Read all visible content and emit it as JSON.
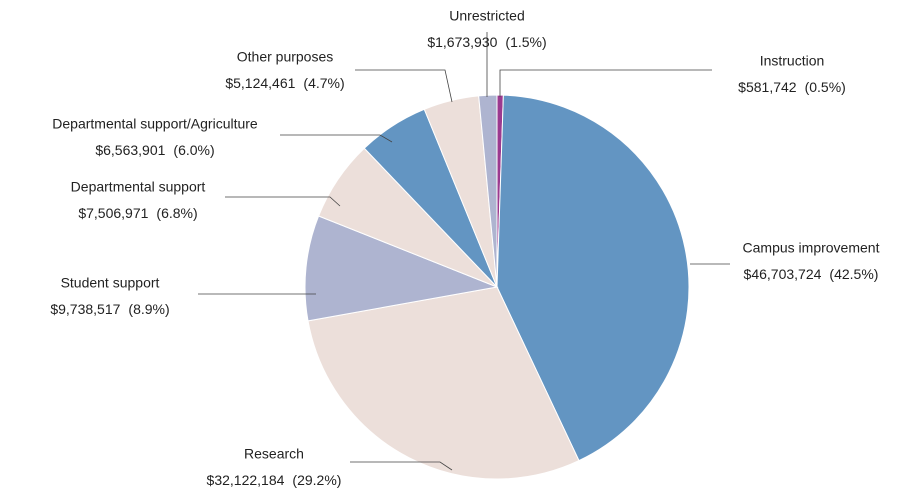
{
  "chart_data": {
    "type": "pie",
    "categories": [
      "Instruction",
      "Campus improvement",
      "Research",
      "Student support",
      "Departmental support",
      "Departmental support/Agriculture",
      "Other purposes",
      "Unrestricted"
    ],
    "values": [
      581742,
      46703724,
      32122184,
      9738517,
      7506971,
      6563901,
      5124461,
      1673930
    ],
    "value_labels": [
      "$581,742",
      "$46,703,724",
      "$32,122,184",
      "$9,738,517",
      "$7,506,971",
      "$6,563,901",
      "$5,124,461",
      "$1,673,930"
    ],
    "percent_labels": [
      "(0.5%)",
      "(42.5%)",
      "(29.2%)",
      "(8.9%)",
      "(6.8%)",
      "(6.0%)",
      "(4.7%)",
      "(1.5%)"
    ],
    "colors": [
      "#9b3a8f",
      "#6395c2",
      "#ecdfda",
      "#aeb4d0",
      "#ecdfda",
      "#6395c2",
      "#ecdfda",
      "#aeb4d0"
    ]
  }
}
